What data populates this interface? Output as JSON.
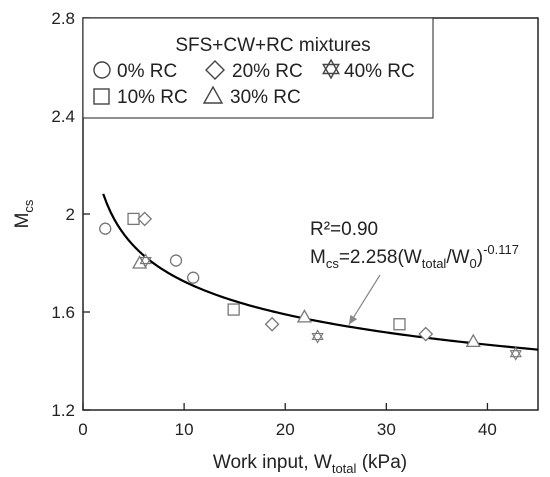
{
  "chart_data": {
    "type": "scatter",
    "xlabel_main": "Work input, W",
    "xlabel_sub": "total",
    "xlabel_unit": " (kPa)",
    "ylabel_main": "M",
    "ylabel_sub": "cs",
    "xlim": [
      0,
      45
    ],
    "ylim": [
      1.2,
      2.8
    ],
    "x_ticks": [
      0,
      10,
      20,
      30,
      40
    ],
    "y_ticks": [
      1.2,
      1.6,
      2.0,
      2.4,
      2.8
    ],
    "x_tick_labels": [
      "0",
      "10",
      "20",
      "30",
      "40"
    ],
    "y_tick_labels": [
      "1.2",
      "1.6",
      "2",
      "2.4",
      "2.8"
    ],
    "legend": {
      "title": "SFS+CW+RC mixtures",
      "position": "top",
      "entries": [
        "0% RC",
        "20% RC",
        "40% RC",
        "10% RC",
        "30% RC"
      ]
    },
    "series": [
      {
        "name": "0% RC",
        "marker": "circle",
        "points": [
          [
            2.2,
            1.94
          ],
          [
            9.2,
            1.81
          ],
          [
            10.9,
            1.74
          ]
        ]
      },
      {
        "name": "10% RC",
        "marker": "square",
        "points": [
          [
            5.0,
            1.98
          ],
          [
            14.9,
            1.61
          ],
          [
            31.3,
            1.55
          ]
        ]
      },
      {
        "name": "20% RC",
        "marker": "diamond",
        "points": [
          [
            6.1,
            1.98
          ],
          [
            18.7,
            1.55
          ],
          [
            33.9,
            1.51
          ]
        ]
      },
      {
        "name": "30% RC",
        "marker": "triangle",
        "points": [
          [
            5.6,
            1.8
          ],
          [
            21.9,
            1.58
          ],
          [
            38.6,
            1.48
          ]
        ]
      },
      {
        "name": "40% RC",
        "marker": "star",
        "points": [
          [
            6.2,
            1.81
          ],
          [
            23.2,
            1.5
          ],
          [
            42.8,
            1.43
          ]
        ]
      }
    ],
    "fit": {
      "coef": 2.258,
      "exponent": -0.117,
      "x_start": 2.0,
      "x_end": 45
    },
    "annotation": {
      "r2_text": "R²=0.90",
      "eq_main": "M",
      "eq_sub1": "cs",
      "eq_mid": "=2.258(W",
      "eq_sub2": "total",
      "eq_mid2": "/W",
      "eq_sub3": "0",
      "eq_close": ")",
      "eq_sup": "-0.117",
      "arrow_target_x": 26.3
    },
    "colors": {
      "axis": "#222222",
      "marker_stroke": "#777777",
      "fit_line": "#000000",
      "arrow": "#888888"
    }
  }
}
